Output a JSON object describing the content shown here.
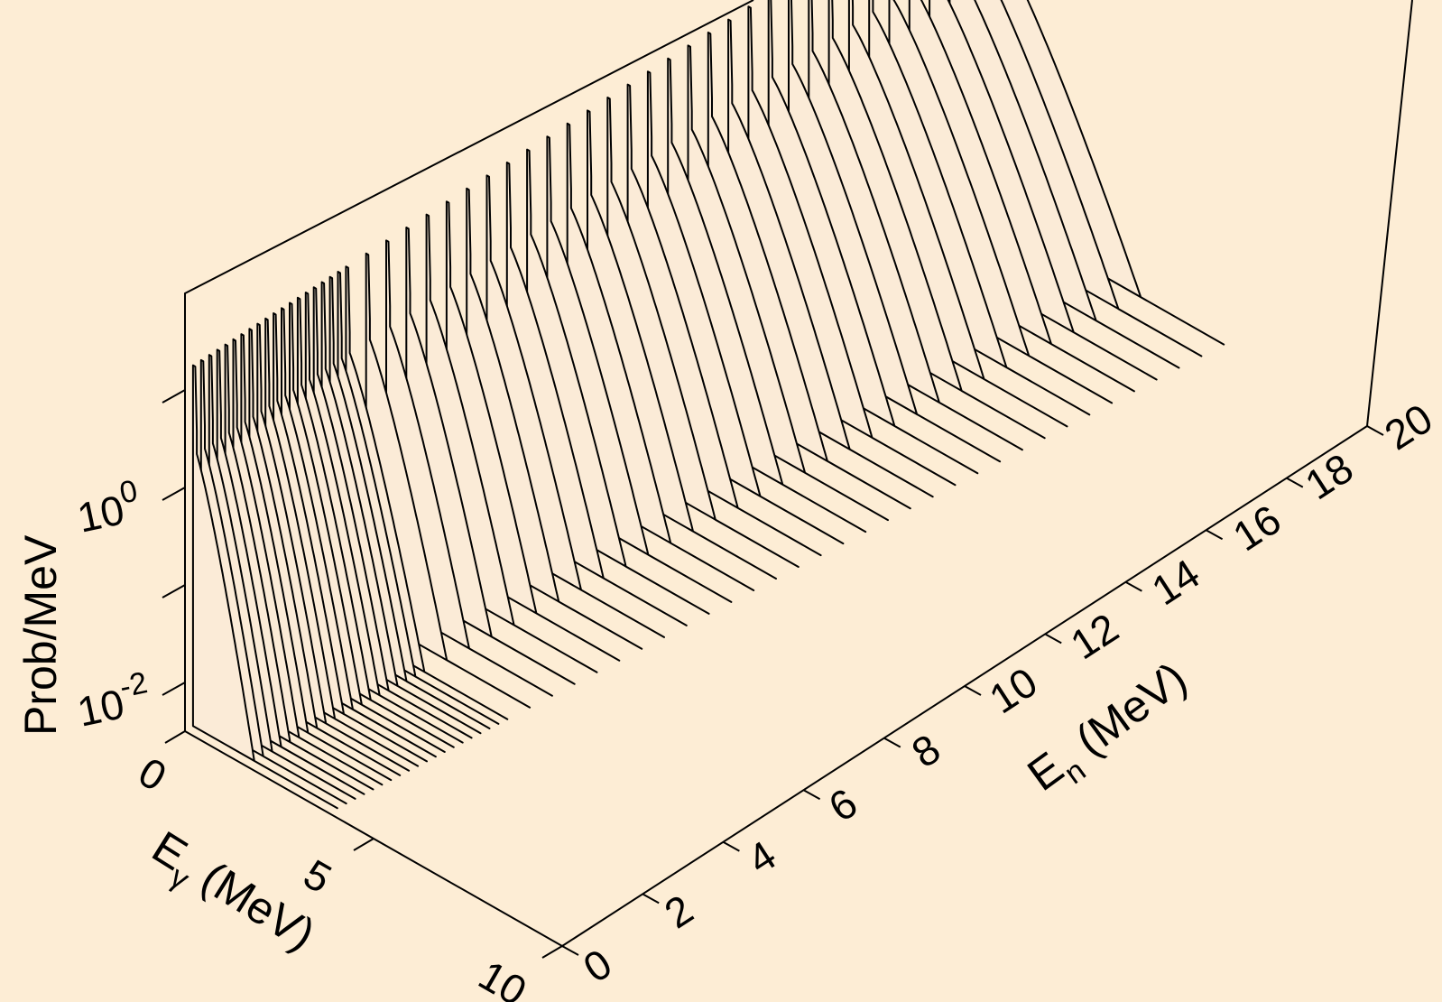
{
  "chart_data": {
    "type": "3d-waterfall",
    "title": "",
    "zlabel": "Prob/MeV",
    "xlabel_main": "E",
    "xlabel_sub": "γ",
    "xlabel_unit": " (MeV)",
    "ylabel_main": "E",
    "ylabel_sub": "n",
    "ylabel_unit": " (MeV)",
    "gamma_ticks": [
      "0",
      "5",
      "10"
    ],
    "neutron_ticks": [
      "0",
      "2",
      "4",
      "6",
      "8",
      "10",
      "12",
      "14",
      "16",
      "18",
      "20"
    ],
    "prob_ticks": [
      {
        "base": "10",
        "exp": "-2"
      },
      {
        "base": "10",
        "exp": "0"
      }
    ],
    "xlim": [
      0,
      10
    ],
    "ylim": [
      0,
      20
    ],
    "zlim_log": [
      -2.5,
      1.5
    ],
    "zscale": "log",
    "neutron_energies": [
      0.2,
      0.4,
      0.6,
      0.8,
      1.0,
      1.2,
      1.4,
      1.6,
      1.8,
      2.0,
      2.2,
      2.4,
      2.6,
      2.8,
      3.0,
      3.2,
      3.4,
      3.6,
      3.8,
      4.0,
      4.5,
      5.0,
      5.5,
      6.0,
      6.5,
      7.0,
      7.5,
      8.0,
      8.5,
      9.0,
      9.5,
      10.0,
      10.5,
      11.0,
      11.5,
      12.0,
      12.5,
      13.0,
      13.5,
      14.0,
      14.5,
      15.0,
      15.5,
      16.0,
      16.5,
      17.0,
      17.5,
      18.0,
      18.5,
      19.0,
      19.5,
      20.0
    ],
    "peak_log_prob": 0.4,
    "spike_log_prob": 1.2,
    "floor_log_prob": -2.5
  }
}
